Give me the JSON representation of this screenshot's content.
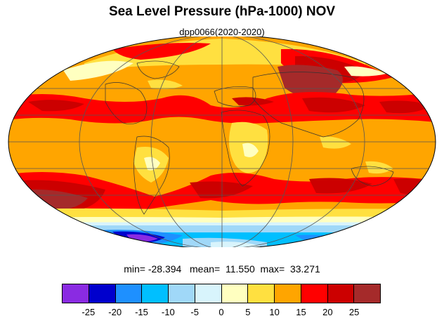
{
  "title": "Sea Level Pressure (hPa-1000) NOV",
  "subtitle": "dpp0066(2020-2020)",
  "stats": {
    "min_label": "min=",
    "min_value": "-28.394",
    "mean_label": "mean=",
    "mean_value": "11.550",
    "max_label": "max=",
    "max_value": "33.271"
  },
  "colorbar": {
    "colors": [
      "#8a2be2",
      "#0000cd",
      "#1e90ff",
      "#00bfff",
      "#a0d8f8",
      "#d8f4fc",
      "#ffffc0",
      "#ffe040",
      "#ffa500",
      "#ff0000",
      "#cc0000",
      "#a52a2a"
    ],
    "labels": [
      "-25",
      "-20",
      "-15",
      "-10",
      "-5",
      "0",
      "5",
      "10",
      "15",
      "20",
      "25"
    ]
  },
  "map": {
    "projection": "mollweide",
    "graticule": "30-degree",
    "ocean_land_base_color": "#ffa500"
  }
}
